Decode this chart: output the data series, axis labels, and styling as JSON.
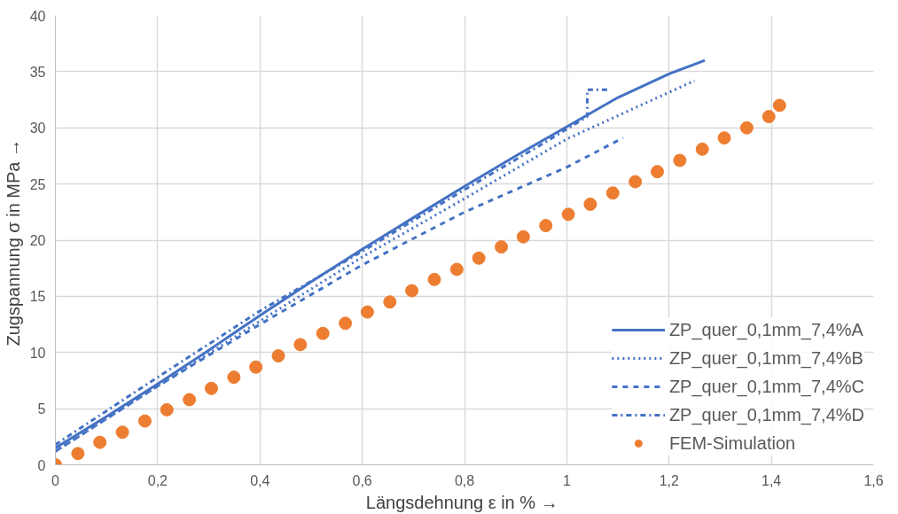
{
  "chart_data": {
    "type": "line",
    "xlabel": "Längsdehnung ε in %  →",
    "ylabel": "Zugspannung σ in MPa  →",
    "xlim": [
      0,
      1.6
    ],
    "ylim": [
      0,
      40
    ],
    "xticks": [
      0,
      {
        "value": 0.2,
        "label": "0,2"
      },
      {
        "value": 0.4,
        "label": "0,4"
      },
      {
        "value": 0.6,
        "label": "0,6"
      },
      {
        "value": 0.8,
        "label": "0,8"
      },
      1,
      {
        "value": 1.2,
        "label": "1,2"
      },
      {
        "value": 1.4,
        "label": "1,4"
      },
      {
        "value": 1.6,
        "label": "1,6"
      }
    ],
    "yticks": [
      0,
      5,
      10,
      15,
      20,
      25,
      30,
      35,
      40
    ],
    "grid": true,
    "legend": "bottom right",
    "series": [
      {
        "name": "ZP_quer_0,1mm_7,4%A",
        "color": "#4472c4",
        "line_style": "solid",
        "x": [
          0,
          0.1,
          0.2,
          0.3,
          0.4,
          0.5,
          0.6,
          0.7,
          0.8,
          0.9,
          1.0,
          1.1,
          1.2,
          1.27
        ],
        "values": [
          1.5,
          4.3,
          7.2,
          10.2,
          13.3,
          16.3,
          19.2,
          22,
          24.8,
          27.5,
          30.1,
          32.7,
          34.8,
          36
        ]
      },
      {
        "name": "ZP_quer_0,1mm_7,4%B",
        "color": "#4472c4",
        "line_style": "dotted",
        "x": [
          0,
          0.2,
          0.4,
          0.6,
          0.8,
          1.0,
          1.25
        ],
        "values": [
          1.2,
          7,
          12.8,
          18.5,
          23.7,
          29,
          34.2
        ]
      },
      {
        "name": "ZP_quer_0,1mm_7,4%C",
        "color": "#4472c4",
        "line_style": "dashed",
        "x": [
          0,
          0.2,
          0.4,
          0.6,
          0.8,
          0.9,
          1.0,
          1.11
        ],
        "values": [
          1.2,
          7,
          12.5,
          17.8,
          22.5,
          24.5,
          26.5,
          29.1
        ]
      },
      {
        "name": "ZP_quer_0,1mm_7,4%D",
        "color": "#4472c4",
        "line_style": "dashdot",
        "x": [
          0,
          0.2,
          0.4,
          0.6,
          0.8,
          0.95,
          1.04,
          1.04,
          1.08
        ],
        "values": [
          1.8,
          7.8,
          13.7,
          19,
          24.5,
          28.5,
          31,
          33.4,
          33.4
        ]
      },
      {
        "name": "FEM-Simulation",
        "type": "scatter",
        "marker": "circle",
        "color": "#ed7d31",
        "x": [
          0,
          0.044,
          0.087,
          0.131,
          0.175,
          0.218,
          0.262,
          0.305,
          0.349,
          0.392,
          0.436,
          0.479,
          0.523,
          0.567,
          0.61,
          0.654,
          0.697,
          0.741,
          0.785,
          0.828,
          0.872,
          0.915,
          0.959,
          1.003,
          1.046,
          1.09,
          1.134,
          1.177,
          1.221,
          1.265,
          1.308,
          1.352,
          1.395,
          1.416
        ],
        "values": [
          0,
          1,
          2,
          2.9,
          3.9,
          4.9,
          5.8,
          6.8,
          7.8,
          8.7,
          9.7,
          10.7,
          11.7,
          12.6,
          13.6,
          14.5,
          15.5,
          16.5,
          17.4,
          18.4,
          19.4,
          20.3,
          21.3,
          22.3,
          23.2,
          24.2,
          25.2,
          26.1,
          27.1,
          28.1,
          29.1,
          30,
          31,
          32
        ]
      }
    ]
  }
}
